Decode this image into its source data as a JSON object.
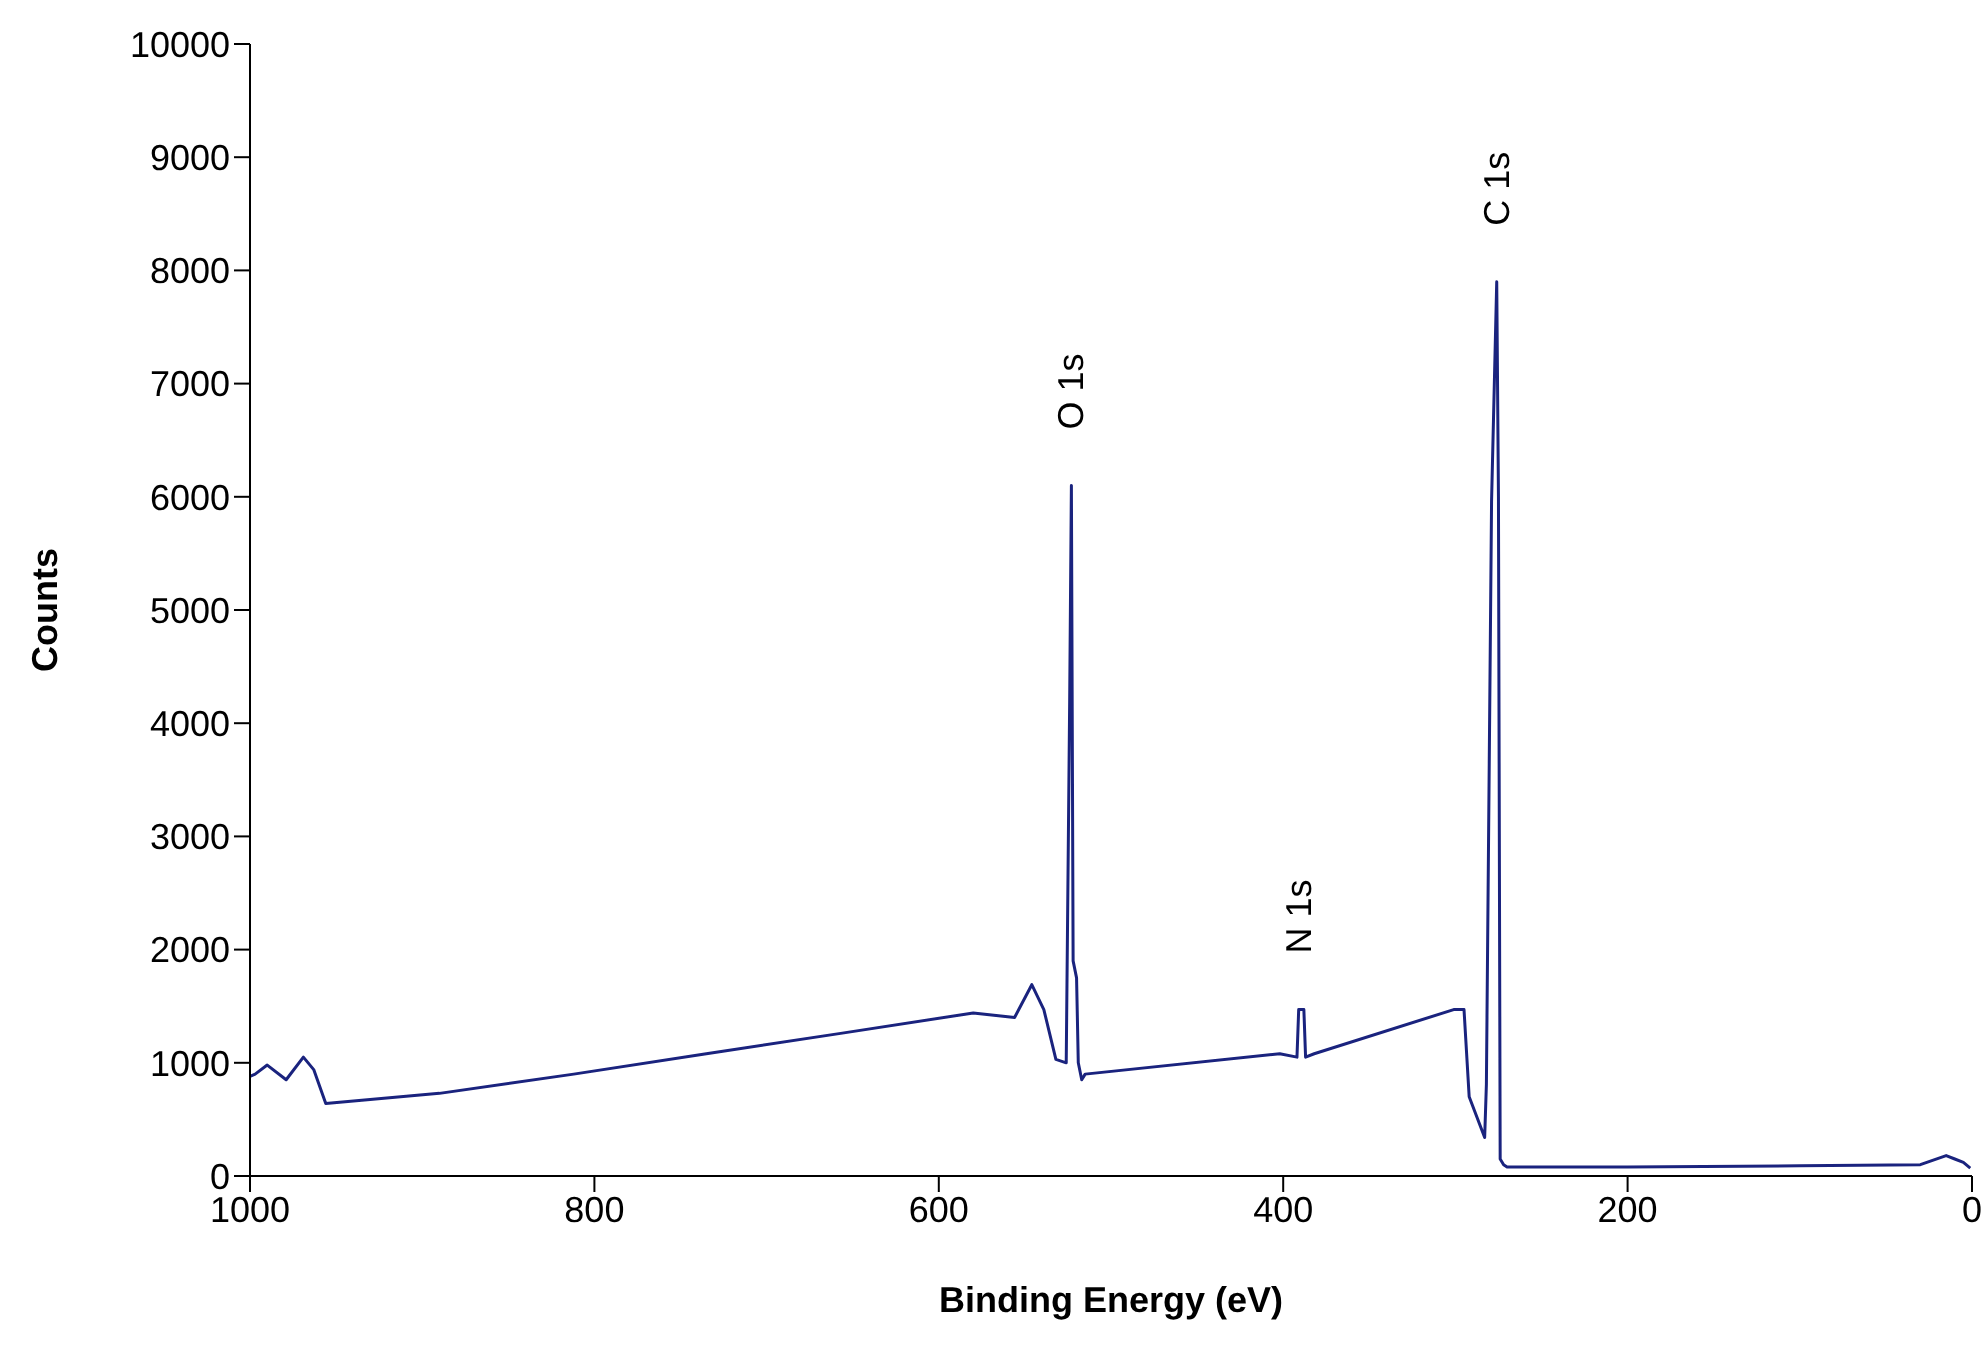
{
  "chart_data": {
    "type": "line",
    "xlabel": "Binding Energy (eV)",
    "ylabel": "Counts",
    "x": [
      1000,
      997,
      990,
      979,
      969,
      963,
      956,
      890,
      812,
      735,
      657,
      580,
      556,
      546,
      539,
      532,
      526,
      524,
      523,
      522,
      520,
      519,
      517,
      515,
      402,
      392,
      391,
      388,
      387,
      382,
      301,
      295,
      292,
      283,
      282,
      279,
      276,
      275,
      274,
      272,
      270,
      200,
      100,
      30,
      15,
      10,
      5,
      1
    ],
    "series": [
      {
        "color": "#1a237e",
        "values": [
          880,
          900,
          980,
          850,
          1050,
          940,
          640,
          730,
          900,
          1080,
          1260,
          1440,
          1400,
          1690,
          1470,
          1030,
          1000,
          4200,
          6100,
          1900,
          1750,
          1000,
          850,
          900,
          1080,
          1050,
          1470,
          1470,
          1050,
          1080,
          1470,
          1470,
          700,
          340,
          810,
          5960,
          7900,
          6000,
          150,
          100,
          80,
          80,
          90,
          100,
          180,
          150,
          120,
          70
        ]
      }
    ],
    "xlim": [
      1000,
      0
    ],
    "xticks": [
      1000,
      800,
      600,
      400,
      200,
      0
    ],
    "ylim": [
      0,
      10000
    ],
    "yticks": [
      0,
      1000,
      2000,
      3000,
      4000,
      5000,
      6000,
      7000,
      8000,
      9000,
      10000
    ],
    "grid": false,
    "legend": false,
    "marker": "none",
    "line_style": "solid",
    "annotations": [
      {
        "text": "O 1s",
        "x": 523,
        "y": 6100
      },
      {
        "text": "N 1s",
        "x": 391,
        "y": 1470
      },
      {
        "text": "C 1s",
        "x": 276,
        "y": 7900
      }
    ]
  }
}
